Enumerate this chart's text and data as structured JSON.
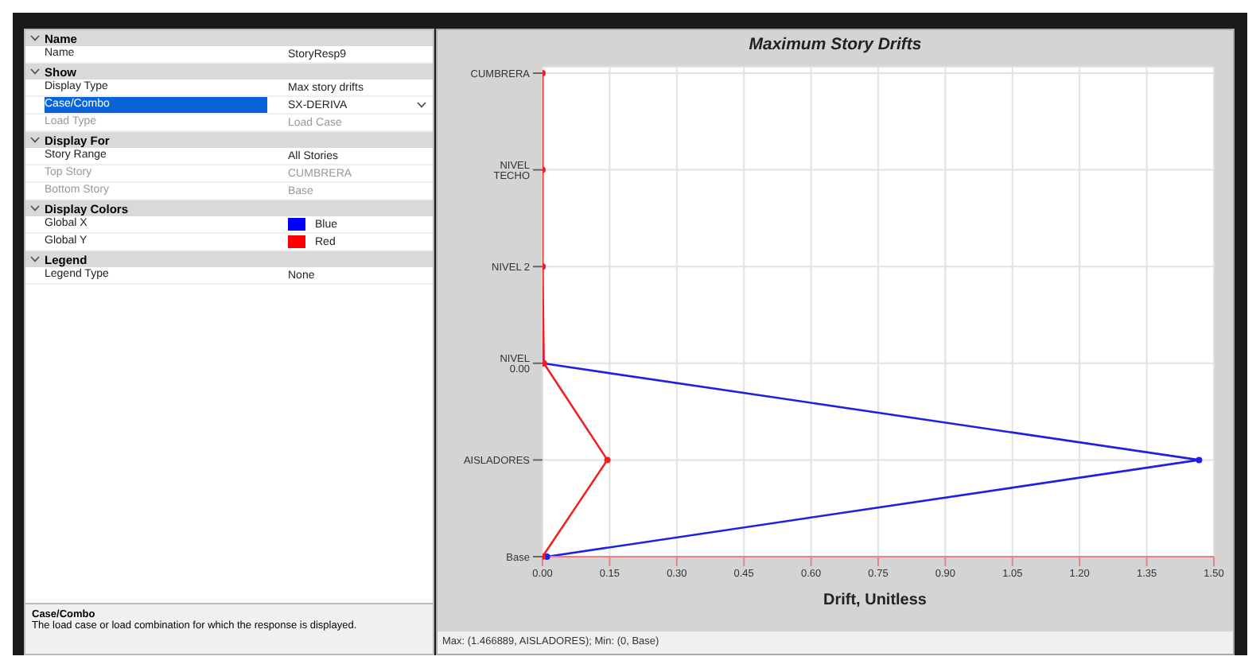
{
  "chart_data": [
    {
      "type": "other",
      "annotations": [
        "Name",
        "Name",
        "StoryResp9",
        "Show",
        "Display Type",
        "Max story drifts",
        "Case/Combo",
        "SX-DERIVA",
        "Load Type",
        "Load Case",
        "Display For",
        "Story Range",
        "All Stories",
        "Top Story",
        "CUMBRERA",
        "Bottom Story",
        "Base",
        "Display Colors",
        "Global X",
        "Blue",
        "Global Y",
        "Red",
        "Legend",
        "Legend Type",
        "None",
        "Case/Combo",
        "The load case or load combination for which the response is displayed."
      ],
      "colors": [
        "#0000ff",
        "#ff0000"
      ]
    },
    {
      "type": "line",
      "title": "Maximum Story Drifts",
      "xlabel": "Drift, Unitless",
      "orientation": "horizontal",
      "categories": [
        "CUMBRERA",
        "NIVEL TECHO",
        "NIVEL 2",
        "NIVEL 0.00",
        "AISLADORES",
        "Base"
      ],
      "series": [
        {
          "color": "#2020e0",
          "values": [
            null,
            null,
            0,
            0,
            1.466889,
            0.01
          ]
        },
        {
          "color": "#f02020",
          "values": [
            0,
            0,
            0,
            0.003,
            0.145,
            0
          ]
        }
      ],
      "xlim": [
        0,
        1.5
      ],
      "xticks": [
        {
          "value": 0,
          "label": "0.00"
        },
        0.15,
        {
          "value": 0.3,
          "label": "0.30"
        },
        0.45,
        {
          "value": 0.6,
          "label": "0.60"
        },
        0.75,
        {
          "value": 0.9,
          "label": "0.90"
        },
        1.05,
        {
          "value": 1.2,
          "label": "1.20"
        },
        1.35,
        {
          "value": 1.5,
          "label": "1.50"
        }
      ],
      "grid": true,
      "marker": "circle",
      "line_style": "solid",
      "annotations": [
        "Max: (1.466889, AISLADORES);  Min: (0, Base)"
      ]
    }
  ]
}
